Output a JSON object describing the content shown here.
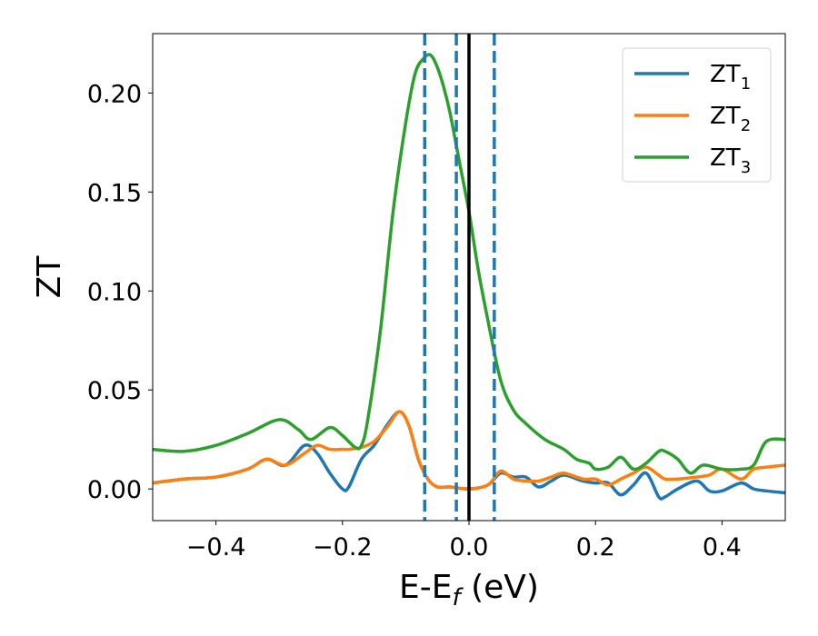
{
  "chart_data": {
    "type": "line",
    "xlabel": "E-E",
    "xlabel_sub": "f",
    "xlabel_unit": " (eV)",
    "ylabel": "ZT",
    "xlim": [
      -0.5,
      0.5
    ],
    "ylim": [
      -0.016,
      0.23
    ],
    "grid": false,
    "legend": "top-right",
    "x_ticks": [
      -0.4,
      -0.2,
      0.0,
      0.2,
      0.4
    ],
    "x_tick_labels": [
      "−0.4",
      "−0.2",
      "0.0",
      "0.2",
      "0.4"
    ],
    "y_ticks": [
      0.0,
      0.05,
      0.1,
      0.15,
      0.2
    ],
    "y_tick_labels": [
      "0.00",
      "0.05",
      "0.10",
      "0.15",
      "0.20"
    ],
    "vertical_lines": [
      {
        "x": -0.07,
        "style": "dashed",
        "color": "#1f77b4"
      },
      {
        "x": -0.02,
        "style": "dashed",
        "color": "#1f77b4"
      },
      {
        "x": 0.0,
        "style": "solid",
        "color": "#000000"
      },
      {
        "x": 0.04,
        "style": "dashed",
        "color": "#1f77b4"
      }
    ],
    "series": [
      {
        "name": "ZT",
        "name_sub": "1",
        "color": "#1f77b4",
        "x": [
          -0.5,
          -0.45,
          -0.4,
          -0.35,
          -0.32,
          -0.29,
          -0.26,
          -0.24,
          -0.22,
          -0.2,
          -0.19,
          -0.17,
          -0.15,
          -0.13,
          -0.11,
          -0.095,
          -0.08,
          -0.065,
          -0.05,
          -0.03,
          0.0,
          0.03,
          0.05,
          0.07,
          0.09,
          0.11,
          0.13,
          0.15,
          0.18,
          0.2,
          0.22,
          0.24,
          0.26,
          0.28,
          0.3,
          0.31,
          0.33,
          0.36,
          0.38,
          0.4,
          0.43,
          0.45,
          0.47,
          0.5
        ],
        "y": [
          0.003,
          0.005,
          0.006,
          0.01,
          0.015,
          0.012,
          0.022,
          0.018,
          0.008,
          0.0,
          0.001,
          0.015,
          0.022,
          0.032,
          0.039,
          0.032,
          0.015,
          0.005,
          0.001,
          0.001,
          0.0,
          0.002,
          0.008,
          0.006,
          0.006,
          0.001,
          0.004,
          0.007,
          0.004,
          0.003,
          0.003,
          -0.003,
          0.002,
          0.008,
          -0.004,
          -0.004,
          0.0,
          0.004,
          -0.001,
          -0.001,
          0.003,
          0.0,
          -0.001,
          -0.002
        ]
      },
      {
        "name": "ZT",
        "name_sub": "2",
        "color": "#ff7f0e",
        "x": [
          -0.5,
          -0.45,
          -0.4,
          -0.35,
          -0.32,
          -0.29,
          -0.26,
          -0.24,
          -0.22,
          -0.2,
          -0.19,
          -0.17,
          -0.15,
          -0.13,
          -0.11,
          -0.095,
          -0.08,
          -0.065,
          -0.05,
          -0.03,
          0.0,
          0.03,
          0.05,
          0.07,
          0.09,
          0.11,
          0.13,
          0.15,
          0.18,
          0.2,
          0.22,
          0.24,
          0.26,
          0.28,
          0.3,
          0.31,
          0.33,
          0.36,
          0.38,
          0.4,
          0.43,
          0.45,
          0.47,
          0.5
        ],
        "y": [
          0.003,
          0.005,
          0.006,
          0.01,
          0.015,
          0.012,
          0.018,
          0.022,
          0.02,
          0.02,
          0.02,
          0.021,
          0.024,
          0.031,
          0.039,
          0.032,
          0.015,
          0.005,
          0.001,
          0.001,
          0.0,
          0.002,
          0.009,
          0.005,
          0.004,
          0.004,
          0.006,
          0.008,
          0.005,
          0.005,
          0.002,
          0.005,
          0.008,
          0.011,
          0.007,
          0.005,
          0.005,
          0.006,
          0.007,
          0.01,
          0.005,
          0.01,
          0.011,
          0.012
        ]
      },
      {
        "name": "ZT",
        "name_sub": "3",
        "color": "#2ca02c",
        "x": [
          -0.5,
          -0.45,
          -0.4,
          -0.35,
          -0.3,
          -0.27,
          -0.25,
          -0.22,
          -0.2,
          -0.18,
          -0.17,
          -0.16,
          -0.14,
          -0.12,
          -0.1,
          -0.085,
          -0.07,
          -0.06,
          -0.05,
          -0.04,
          -0.03,
          -0.015,
          0.0,
          0.015,
          0.03,
          0.05,
          0.07,
          0.09,
          0.12,
          0.15,
          0.17,
          0.19,
          0.2,
          0.22,
          0.24,
          0.26,
          0.28,
          0.3,
          0.31,
          0.33,
          0.35,
          0.37,
          0.4,
          0.43,
          0.45,
          0.47,
          0.5
        ],
        "y": [
          0.02,
          0.019,
          0.022,
          0.028,
          0.035,
          0.03,
          0.025,
          0.031,
          0.027,
          0.021,
          0.022,
          0.035,
          0.08,
          0.14,
          0.185,
          0.21,
          0.218,
          0.219,
          0.213,
          0.203,
          0.19,
          0.165,
          0.14,
          0.11,
          0.085,
          0.055,
          0.04,
          0.033,
          0.025,
          0.02,
          0.015,
          0.013,
          0.01,
          0.011,
          0.016,
          0.01,
          0.013,
          0.019,
          0.019,
          0.015,
          0.008,
          0.012,
          0.01,
          0.01,
          0.012,
          0.024,
          0.025
        ]
      }
    ]
  }
}
